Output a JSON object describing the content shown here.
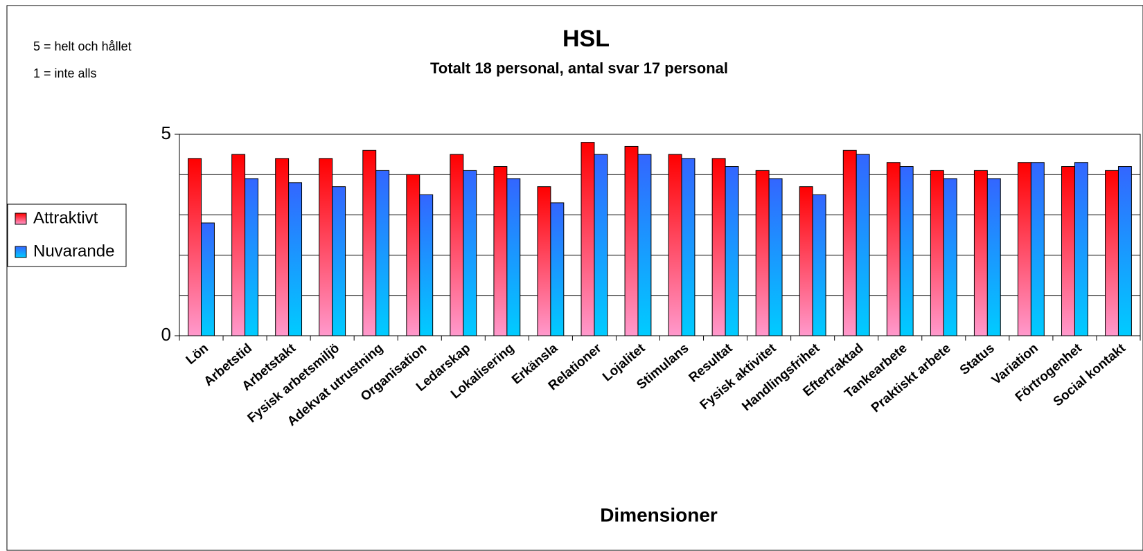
{
  "chart_data": {
    "type": "bar",
    "title": "HSL",
    "subtitle": "Totalt 18 personal, antal svar 17 personal",
    "annotations": [
      "5 = helt och hållet",
      "1 = inte alls"
    ],
    "x_label": "Dimensioner",
    "categories": [
      "Lön",
      "Arbetstid",
      "Arbetstakt",
      "Fysisk arbetsmiljö",
      "Adekvat utrustning",
      "Organisation",
      "Ledarskap",
      "Lokalisering",
      "Erkänsla",
      "Relationer",
      "Lojalitet",
      "Stimulans",
      "Resultat",
      "Fysisk aktivitet",
      "Handlingsfrihet",
      "Eftertraktad",
      "Tankearbete",
      "Praktiskt arbete",
      "Status",
      "Variation",
      "Förtrogenhet",
      "Social kontakt"
    ],
    "series": [
      {
        "name": "Attraktivt",
        "color": "#ff0000",
        "color_bottom": "#ff99cc",
        "values": [
          4.4,
          4.5,
          4.4,
          4.4,
          4.6,
          4.0,
          4.5,
          4.2,
          3.7,
          4.8,
          4.7,
          4.5,
          4.4,
          4.1,
          3.7,
          4.6,
          4.3,
          4.1,
          4.1,
          4.3,
          4.2,
          4.1
        ]
      },
      {
        "name": "Nuvarande",
        "color": "#3366ff",
        "color_bottom": "#00ccff",
        "values": [
          2.8,
          3.9,
          3.8,
          3.7,
          4.1,
          3.5,
          4.1,
          3.9,
          3.3,
          4.5,
          4.5,
          4.4,
          4.2,
          3.9,
          3.5,
          4.5,
          4.2,
          3.9,
          3.9,
          4.3,
          4.3,
          4.2
        ]
      }
    ],
    "ylim": [
      0,
      5
    ],
    "yticks": [
      0,
      5
    ],
    "grid_values": [
      1,
      2,
      3,
      4
    ],
    "grid": true,
    "legend": "left"
  }
}
